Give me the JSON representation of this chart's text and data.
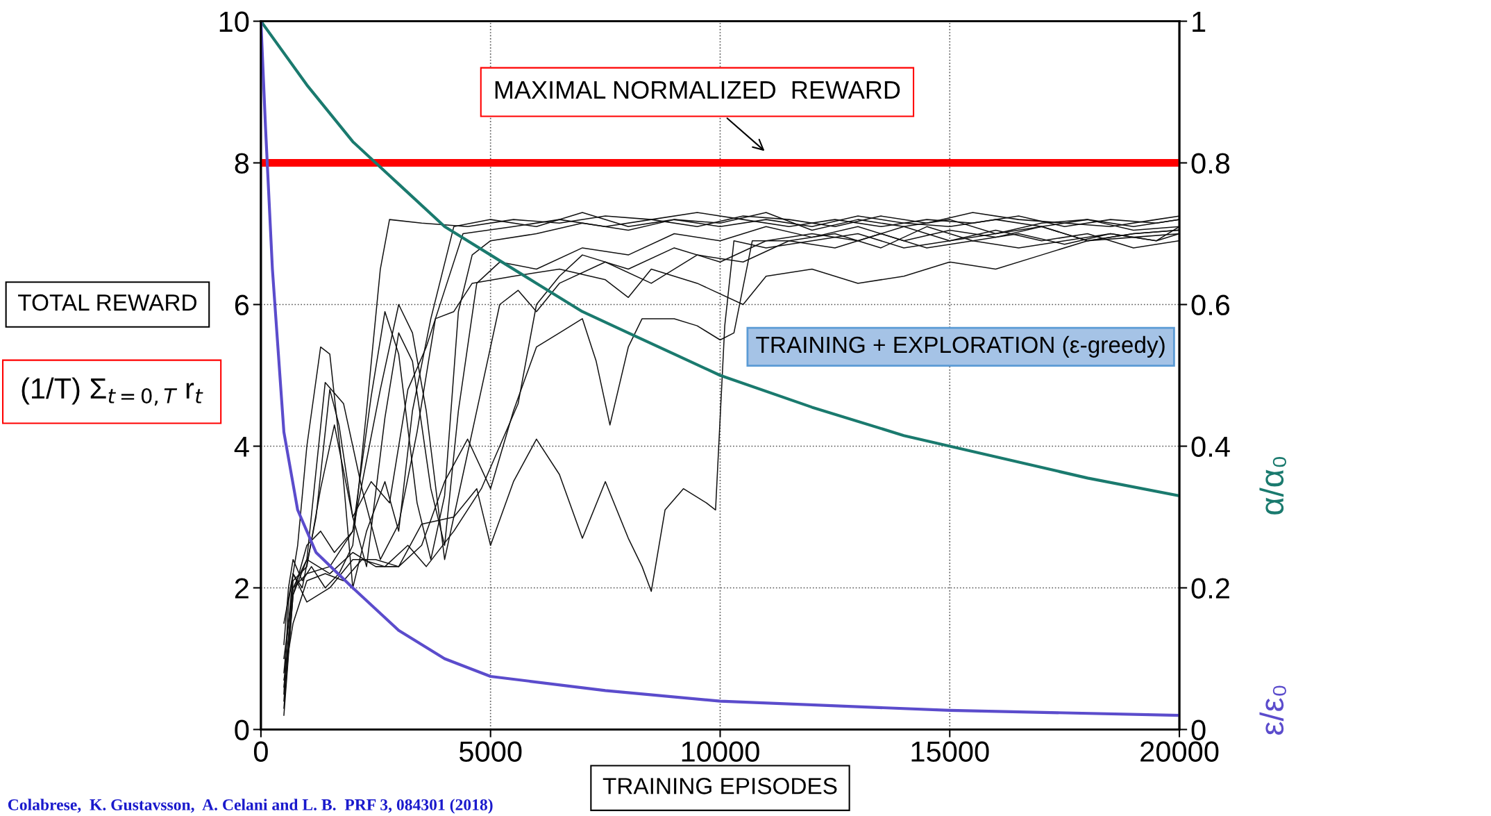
{
  "chart_data": {
    "type": "line",
    "xlabel": "TRAINING EPISODES",
    "ylabel": "TOTAL REWARD",
    "xlim": [
      0,
      20000
    ],
    "xticks": [
      0,
      5000,
      10000,
      15000,
      20000
    ],
    "ylim": [
      0,
      10
    ],
    "yticks": [
      0,
      2,
      4,
      6,
      8,
      10
    ],
    "y2lim": [
      0,
      1
    ],
    "y2ticks": [
      0,
      0.2,
      0.4,
      0.6,
      0.8,
      1
    ],
    "grid": true,
    "line_style": "solid",
    "marker": "none",
    "ref_lines": [
      {
        "axis": "y",
        "value": 8,
        "label": "MAXIMAL NORMALIZED  REWARD",
        "color": "#ff0000"
      }
    ],
    "annotations": [
      "(1/T) Σ$_{t=0,T}$ r$_{t}$",
      "TRAINING + EXPLORATION (ε-greedy)",
      "Colabrese,  K. Gustavsson,  A. Celani and L. B.  PRF 3, 084301 (2018)"
    ],
    "series": [
      {
        "name": "α/α₀",
        "color": "#1a7a6e",
        "axis": "y2",
        "x": [
          0,
          1000,
          2000,
          3000,
          4000,
          5000,
          6000,
          7000,
          8000,
          9000,
          10000,
          12000,
          14000,
          16000,
          18000,
          20000
        ],
        "values": [
          1.0,
          0.91,
          0.83,
          0.77,
          0.71,
          0.67,
          0.63,
          0.59,
          0.56,
          0.53,
          0.5,
          0.455,
          0.415,
          0.385,
          0.355,
          0.33
        ]
      },
      {
        "name": "ε/ε₀",
        "color": "#5b4ccc",
        "axis": "y2",
        "x": [
          0,
          100,
          250,
          500,
          800,
          1200,
          2000,
          3000,
          4000,
          5000,
          7500,
          10000,
          15000,
          20000
        ],
        "values": [
          1.0,
          0.85,
          0.65,
          0.42,
          0.31,
          0.25,
          0.2,
          0.14,
          0.1,
          0.075,
          0.055,
          0.04,
          0.027,
          0.02
        ]
      },
      {
        "color": "#111111",
        "x": [
          500,
          600,
          700,
          900,
          1100,
          1400,
          1700,
          2000,
          2300,
          2600,
          2800,
          3500,
          4500,
          5500,
          6500,
          7500,
          8500,
          9500,
          10500,
          11500,
          12500,
          13500,
          14500,
          15500,
          16500,
          17500,
          18500,
          19500,
          20000
        ],
        "values": [
          1.2,
          2.0,
          2.4,
          2.1,
          2.3,
          2.0,
          2.2,
          2.6,
          4.5,
          6.5,
          7.2,
          7.15,
          7.1,
          7.2,
          7.15,
          7.25,
          7.2,
          7.1,
          7.25,
          7.2,
          7.1,
          7.25,
          7.15,
          7.3,
          7.2,
          7.15,
          7.1,
          7.2,
          7.25
        ]
      },
      {
        "color": "#111111",
        "x": [
          500,
          600,
          800,
          1000,
          1300,
          1500,
          1800,
          2000,
          2300,
          2700,
          3000,
          3300,
          3700,
          4200,
          5000,
          6000,
          7000,
          8000,
          9000,
          10000,
          11000,
          12000,
          13000,
          14000,
          15000,
          16000,
          17000,
          18000,
          19000,
          20000
        ],
        "values": [
          0.5,
          1.8,
          2.6,
          4.0,
          5.4,
          5.3,
          3.5,
          2.0,
          2.8,
          3.5,
          2.8,
          4.5,
          5.8,
          7.1,
          7.2,
          7.1,
          7.3,
          7.1,
          7.2,
          7.15,
          7.3,
          7.05,
          7.2,
          7.1,
          7.2,
          7.0,
          7.15,
          7.2,
          7.05,
          7.1
        ]
      },
      {
        "color": "#111111",
        "x": [
          500,
          700,
          900,
          1200,
          1500,
          1700,
          2000,
          2300,
          2700,
          3000,
          3300,
          3700,
          4000,
          4300,
          4700,
          5200,
          6000,
          7000,
          8000,
          9000,
          10000,
          11000,
          12000,
          13000,
          14000,
          15000,
          16000,
          17000,
          18000,
          19000,
          20000
        ],
        "values": [
          0.8,
          2.2,
          2.0,
          3.0,
          4.8,
          4.3,
          3.0,
          2.3,
          4.4,
          5.6,
          5.2,
          3.4,
          2.6,
          4.5,
          6.3,
          6.6,
          6.5,
          6.8,
          6.7,
          7.0,
          6.9,
          7.1,
          6.95,
          7.1,
          6.9,
          7.05,
          6.95,
          7.1,
          6.9,
          7.0,
          7.05
        ]
      },
      {
        "color": "#111111",
        "x": [
          500,
          700,
          1000,
          1400,
          1800,
          2200,
          2600,
          3000,
          3400,
          3800,
          4200,
          4600,
          5500,
          6500,
          7500,
          8000,
          8500,
          9500,
          10500,
          11000,
          12000,
          13000,
          14000,
          15000,
          16000,
          17000,
          18000,
          19000,
          20000
        ],
        "values": [
          0.3,
          1.9,
          2.4,
          4.9,
          4.6,
          3.4,
          2.4,
          2.9,
          4.2,
          5.8,
          5.9,
          6.3,
          6.4,
          6.5,
          6.35,
          6.1,
          6.5,
          6.3,
          6.0,
          6.4,
          6.5,
          6.3,
          6.4,
          6.6,
          6.5,
          6.7,
          6.9,
          6.95,
          7.0
        ]
      },
      {
        "color": "#111111",
        "x": [
          500,
          700,
          1000,
          1500,
          2000,
          2600,
          3000,
          3300,
          3600,
          4000,
          4400,
          4800,
          5200,
          5600,
          6000,
          6500,
          7500,
          8500,
          9500,
          10500,
          11500,
          12500,
          13500,
          14500,
          15500,
          16500,
          17500,
          18500,
          19500,
          20000
        ],
        "values": [
          0.6,
          2.0,
          2.2,
          2.3,
          2.8,
          4.8,
          6.0,
          5.6,
          4.5,
          2.4,
          3.6,
          4.8,
          6.0,
          6.2,
          5.9,
          6.3,
          6.6,
          6.3,
          6.7,
          6.6,
          6.9,
          6.8,
          7.0,
          6.8,
          6.9,
          6.8,
          6.9,
          7.0,
          6.9,
          7.0
        ]
      },
      {
        "color": "#111111",
        "x": [
          500,
          700,
          1000,
          1500,
          2000,
          2500,
          3000,
          3500,
          4000,
          4500,
          5000,
          5500,
          6000,
          6500,
          7000,
          7300,
          7600,
          8000,
          8300,
          9000,
          9500,
          10000,
          10300,
          10700,
          11500,
          12500,
          13500,
          14500,
          15500,
          16500,
          17500,
          18500,
          19500,
          20000
        ],
        "values": [
          1.5,
          2.2,
          1.8,
          2.0,
          2.4,
          2.4,
          2.3,
          2.6,
          3.5,
          4.1,
          3.4,
          4.5,
          5.4,
          5.6,
          5.8,
          5.2,
          4.3,
          5.4,
          5.8,
          5.8,
          5.7,
          5.5,
          5.6,
          6.9,
          6.9,
          7.0,
          6.8,
          7.1,
          6.9,
          7.0,
          6.85,
          7.0,
          6.9,
          7.1
        ]
      },
      {
        "color": "#111111",
        "x": [
          500,
          700,
          1000,
          1500,
          2000,
          2500,
          3000,
          3500,
          4200,
          4700,
          5000,
          5500,
          6000,
          6500,
          7000,
          7500,
          8000,
          8300,
          8500,
          8800,
          9200,
          9700,
          9900,
          10100,
          10300,
          11000,
          12000,
          13000,
          14000,
          15000,
          16000,
          17000,
          18000,
          19000,
          20000
        ],
        "values": [
          1.0,
          2.0,
          2.4,
          2.2,
          2.5,
          2.3,
          2.3,
          2.9,
          3.0,
          3.4,
          2.6,
          3.5,
          4.1,
          3.6,
          2.7,
          3.5,
          2.7,
          2.3,
          1.95,
          3.1,
          3.4,
          3.2,
          3.1,
          5.7,
          6.9,
          6.8,
          6.9,
          7.0,
          6.8,
          6.9,
          7.05,
          6.9,
          7.0,
          6.8,
          6.9
        ]
      },
      {
        "color": "#111111",
        "x": [
          500,
          700,
          1000,
          1300,
          1600,
          2000,
          2400,
          2700,
          3000,
          3400,
          3700,
          4000,
          4300,
          4600,
          5000,
          6000,
          7000,
          8000,
          9000,
          10000,
          11000,
          12000,
          13000,
          14000,
          15000,
          16000,
          17000,
          18000,
          19000,
          20000
        ],
        "values": [
          0.2,
          1.9,
          2.6,
          2.8,
          2.5,
          2.8,
          4.7,
          5.9,
          5.3,
          3.2,
          2.4,
          3.3,
          5.9,
          6.7,
          6.9,
          7.0,
          7.15,
          7.05,
          7.2,
          7.1,
          7.2,
          7.1,
          7.25,
          7.15,
          7.1,
          7.2,
          7.1,
          7.2,
          7.1,
          7.2
        ]
      },
      {
        "color": "#111111",
        "x": [
          500,
          700,
          1000,
          1300,
          1600,
          2000,
          2400,
          2800,
          3200,
          3600,
          4000,
          4400,
          5500,
          6500,
          7500,
          8500,
          9500,
          10500,
          11500,
          12500,
          13500,
          14500,
          15500,
          16500,
          17500,
          18500,
          19500,
          20000
        ],
        "values": [
          0.4,
          2.1,
          2.3,
          3.4,
          4.3,
          3.0,
          3.5,
          3.2,
          4.8,
          5.4,
          6.2,
          7.0,
          7.1,
          7.2,
          7.1,
          7.2,
          7.3,
          7.2,
          7.1,
          7.2,
          7.1,
          7.2,
          7.15,
          7.25,
          7.1,
          7.2,
          7.15,
          7.2
        ]
      },
      {
        "color": "#111111",
        "x": [
          500,
          700,
          1000,
          1400,
          1800,
          2200,
          2700,
          3200,
          3600,
          4200,
          4800,
          5200,
          5600,
          6000,
          6500,
          7000,
          8000,
          9000,
          10000,
          11000,
          12000,
          13000,
          14000,
          15000,
          16000,
          17000,
          18000,
          19000,
          20000
        ],
        "values": [
          0.7,
          1.5,
          2.1,
          2.2,
          2.1,
          2.4,
          2.3,
          2.6,
          2.3,
          2.8,
          3.4,
          4.0,
          4.6,
          6.0,
          6.4,
          6.7,
          6.5,
          6.8,
          6.6,
          6.9,
          7.0,
          6.9,
          7.1,
          6.9,
          7.0,
          7.1,
          6.9,
          7.0,
          7.05
        ]
      }
    ]
  }
}
